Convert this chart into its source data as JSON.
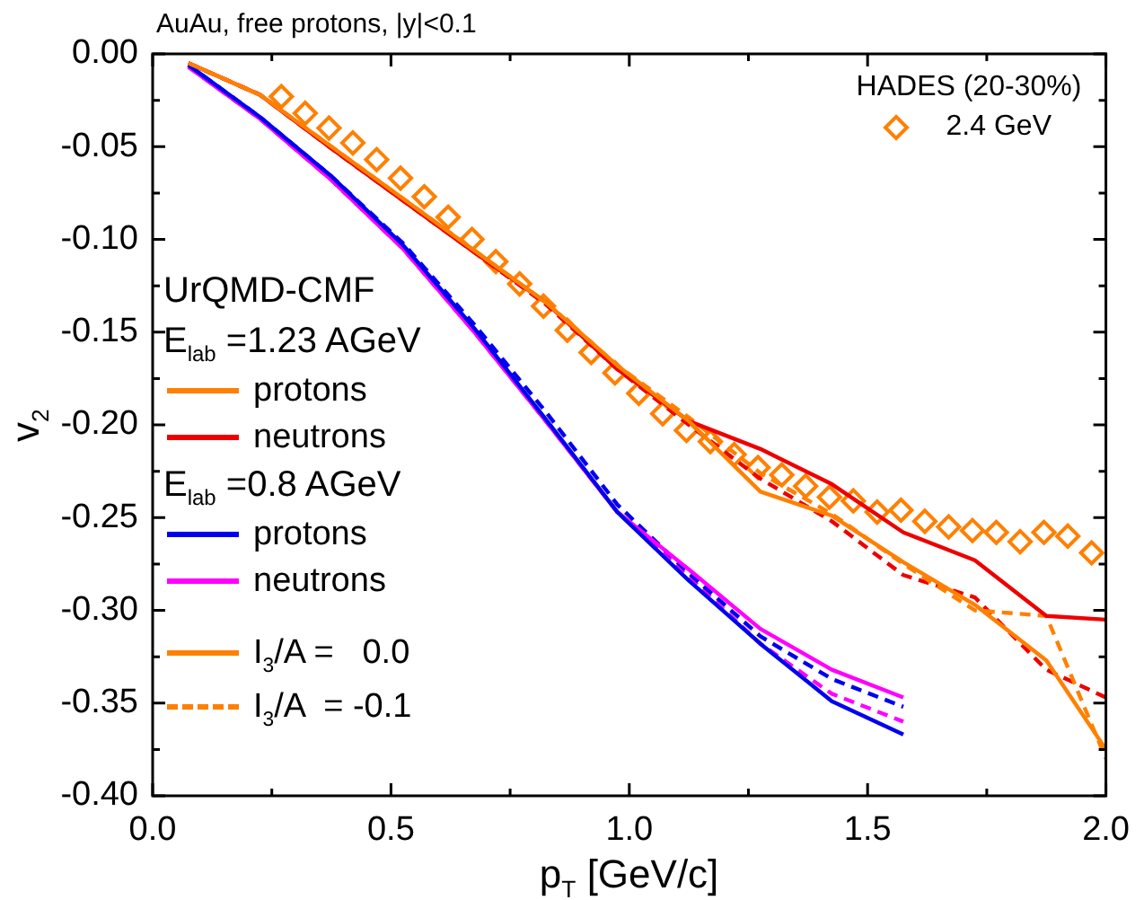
{
  "chart_data": {
    "type": "line",
    "title": "AuAu, free protons, |y|<0.1",
    "xlabel": "p$_{T}$ [GeV/c]",
    "ylabel": "v$_{2}$",
    "legend_title": "HADES (20-30%)",
    "legend": "top right",
    "grid": false,
    "marker": "none",
    "annotations": [
      "UrQMD-CMF",
      "E$_{lab}$ =1.23 AGeV",
      "E$_{lab}$ =0.8 AGeV",
      "I$_{3}$/A =   0.0",
      "I$_{3}$/A  = -0.1"
    ],
    "xlim": [
      0,
      2
    ],
    "ylim": [
      -0.4,
      0
    ],
    "xticks": [
      {
        "value": 0,
        "label": "0.0"
      },
      {
        "value": 0.25,
        "label": null
      },
      {
        "value": 0.5,
        "label": "0.5"
      },
      {
        "value": 0.75,
        "label": null
      },
      {
        "value": 1,
        "label": "1.0"
      },
      {
        "value": 1.25,
        "label": null
      },
      {
        "value": 1.5,
        "label": "1.5"
      },
      {
        "value": 1.75,
        "label": null
      },
      {
        "value": 2,
        "label": "2.0"
      }
    ],
    "yticks": [
      {
        "value": 0,
        "label": "0.00"
      },
      {
        "value": -0.025,
        "label": null
      },
      {
        "value": -0.05,
        "label": "-0.05"
      },
      {
        "value": -0.075,
        "label": null
      },
      {
        "value": -0.1,
        "label": "-0.10"
      },
      {
        "value": -0.125,
        "label": null
      },
      {
        "value": -0.15,
        "label": "-0.15"
      },
      {
        "value": -0.175,
        "label": null
      },
      {
        "value": -0.2,
        "label": "-0.20"
      },
      {
        "value": -0.225,
        "label": null
      },
      {
        "value": -0.25,
        "label": "-0.25"
      },
      {
        "value": -0.275,
        "label": null
      },
      {
        "value": -0.3,
        "label": "-0.30"
      },
      {
        "value": -0.325,
        "label": null
      },
      {
        "value": -0.35,
        "label": "-0.35"
      },
      {
        "value": -0.375,
        "label": null
      },
      {
        "value": -0.4,
        "label": "-0.40"
      }
    ],
    "x": [
      0.075,
      0.225,
      0.375,
      0.525,
      0.675,
      0.825,
      0.975,
      1.125,
      1.275,
      1.425,
      1.575,
      1.725,
      1.875,
      2.0
    ],
    "series": [
      {
        "name": "protons",
        "color": "#ff8000",
        "line_style": "solid",
        "values": [
          -0.005,
          -0.022,
          -0.05,
          -0.078,
          -0.106,
          -0.134,
          -0.168,
          -0.198,
          -0.236,
          -0.249,
          -0.274,
          -0.297,
          -0.327,
          -0.375
        ]
      },
      {
        "name": "neutrons",
        "color": "#ee0000",
        "line_style": "solid",
        "values": [
          -0.005,
          -0.022,
          -0.051,
          -0.079,
          -0.107,
          -0.134,
          -0.17,
          -0.198,
          -0.213,
          -0.232,
          -0.258,
          -0.273,
          -0.303,
          -0.305
        ]
      },
      {
        "name": "protons",
        "color": "#0000ee",
        "line_style": "solid",
        "values": [
          -0.006,
          -0.034,
          -0.066,
          -0.103,
          -0.148,
          -0.197,
          -0.247,
          -0.284,
          -0.318,
          -0.349,
          -0.367,
          null,
          null,
          null
        ]
      },
      {
        "name": "neutrons",
        "color": "#ff00ff",
        "line_style": "solid",
        "values": [
          -0.007,
          -0.035,
          -0.068,
          -0.105,
          -0.15,
          -0.198,
          -0.247,
          -0.278,
          -0.31,
          -0.332,
          -0.347,
          null,
          null,
          null
        ]
      },
      {
        "color": "#ff8000",
        "line_style": "dashed",
        "values": [
          -0.005,
          -0.022,
          -0.05,
          -0.078,
          -0.106,
          -0.134,
          -0.168,
          -0.196,
          -0.226,
          -0.248,
          -0.275,
          -0.3,
          -0.303,
          -0.38
        ]
      },
      {
        "color": "#ee0000",
        "line_style": "dashed",
        "values": [
          -0.005,
          -0.022,
          -0.051,
          -0.079,
          -0.107,
          -0.135,
          -0.17,
          -0.2,
          -0.229,
          -0.252,
          -0.281,
          -0.293,
          -0.332,
          -0.347
        ]
      },
      {
        "color": "#0000ee",
        "line_style": "dashed",
        "values": [
          -0.006,
          -0.034,
          -0.066,
          -0.102,
          -0.146,
          -0.193,
          -0.243,
          -0.28,
          -0.314,
          -0.337,
          -0.352,
          null,
          null,
          null
        ]
      },
      {
        "color": "#ff00ff",
        "line_style": "dashed",
        "values": [
          -0.007,
          -0.035,
          -0.068,
          -0.105,
          -0.15,
          -0.198,
          -0.247,
          -0.282,
          -0.318,
          -0.345,
          -0.36,
          null,
          null,
          null
        ]
      },
      {
        "name": "2.4 GeV",
        "type": "scatter",
        "marker": "diamond",
        "color": "#ff8000",
        "x": [
          0.27,
          0.32,
          0.37,
          0.42,
          0.47,
          0.52,
          0.57,
          0.62,
          0.67,
          0.72,
          0.77,
          0.82,
          0.87,
          0.92,
          0.97,
          1.02,
          1.07,
          1.12,
          1.17,
          1.22,
          1.27,
          1.32,
          1.37,
          1.42,
          1.47,
          1.52,
          1.57,
          1.62,
          1.67,
          1.72,
          1.77,
          1.82,
          1.87,
          1.92,
          1.97
        ],
        "values": [
          -0.023,
          -0.032,
          -0.04,
          -0.048,
          -0.057,
          -0.067,
          -0.077,
          -0.088,
          -0.1,
          -0.112,
          -0.124,
          -0.136,
          -0.149,
          -0.161,
          -0.172,
          -0.183,
          -0.194,
          -0.203,
          -0.209,
          -0.216,
          -0.223,
          -0.227,
          -0.233,
          -0.239,
          -0.241,
          -0.247,
          -0.246,
          -0.252,
          -0.255,
          -0.257,
          -0.258,
          -0.263,
          -0.258,
          -0.26,
          -0.269
        ]
      }
    ]
  }
}
